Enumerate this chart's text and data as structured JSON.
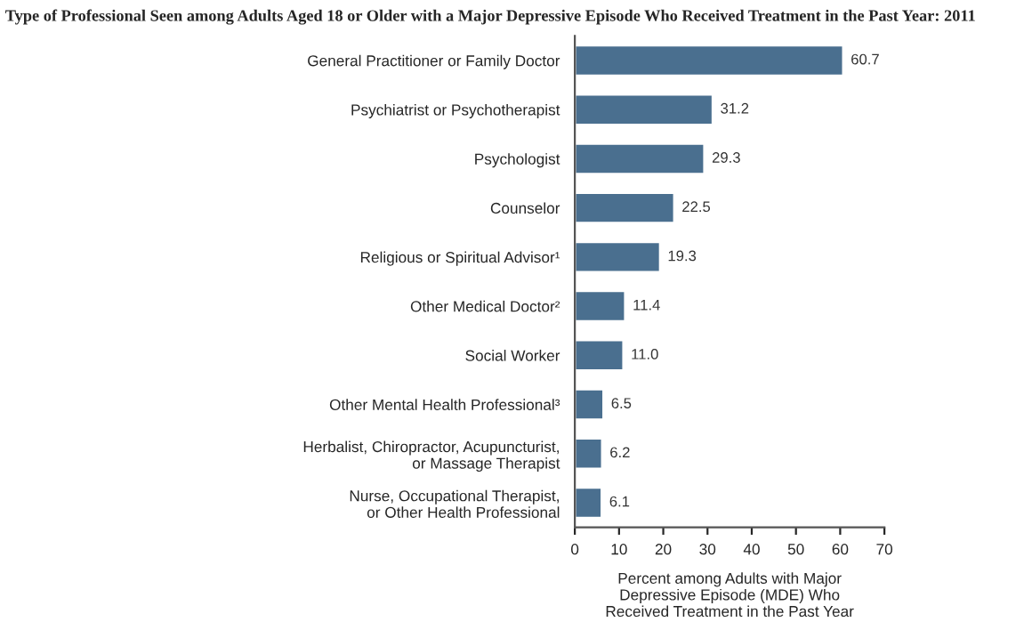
{
  "chart_data": {
    "type": "bar",
    "orientation": "horizontal",
    "title": "Type of Professional Seen among Adults Aged 18 or Older with a Major Depressive Episode Who Received Treatment in the Past Year: 2011",
    "categories": [
      "General Practitioner or Family Doctor",
      "Psychiatrist or Psychotherapist",
      "Psychologist",
      "Counselor",
      "Religious or Spiritual Advisor¹",
      "Other Medical Doctor²",
      "Social Worker",
      "Other Mental Health Professional³",
      "Herbalist, Chiropractor, Acupuncturist,\nor Massage Therapist",
      "Nurse, Occupational Therapist,\nor Other Health Professional"
    ],
    "values": [
      60.7,
      31.2,
      29.3,
      22.5,
      19.3,
      11.4,
      11.0,
      6.5,
      6.2,
      6.1
    ],
    "value_labels": [
      "60.7",
      "31.2",
      "29.3",
      "22.5",
      "19.3",
      "11.4",
      "11.0",
      "6.5",
      "6.2",
      "6.1"
    ],
    "color": "#4a6f8f",
    "xlim": [
      0,
      70
    ],
    "xticks": [
      0,
      10,
      20,
      30,
      40,
      50,
      60,
      70
    ],
    "xlabel": "Percent among Adults with Major\nDepressive Episode (MDE) Who\nReceived Treatment in the Past Year",
    "grid": false,
    "legend": false
  }
}
